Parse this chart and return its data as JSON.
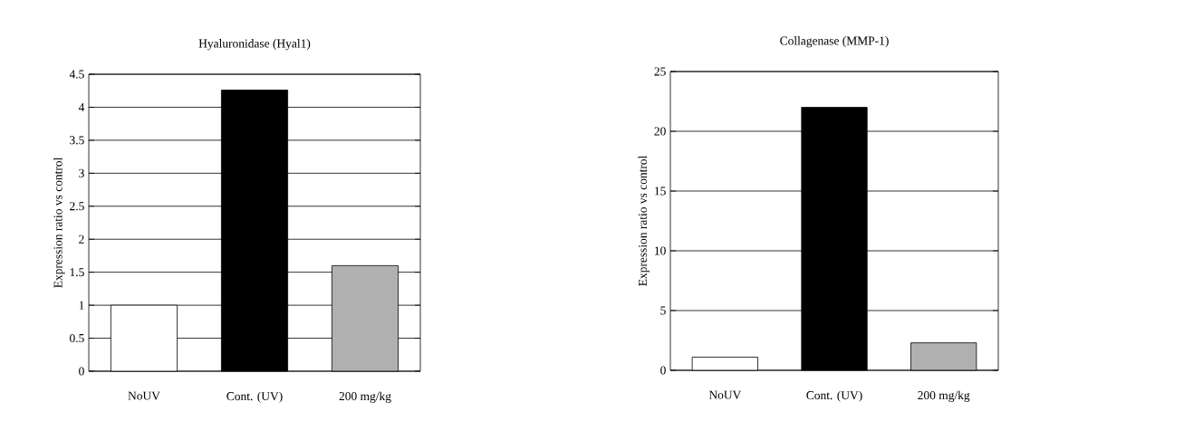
{
  "chart_data": [
    {
      "type": "bar",
      "title": "Hyaluronidase (Hyal1)",
      "ylabel": "Expression ratio vs control",
      "categories": [
        "NoUV",
        "Cont. (UV)",
        "200 mg/kg"
      ],
      "values": [
        1,
        4.26,
        1.6
      ],
      "colors": [
        "#ffffff",
        "#000000",
        "#b0b0b0"
      ],
      "ylim": [
        0,
        4.5
      ],
      "yticks": [
        0,
        0.5,
        1,
        1.5,
        2,
        2.5,
        3,
        3.5,
        4,
        4.5
      ],
      "grid": "y"
    },
    {
      "type": "bar",
      "title": "Collagenase (MMP-1)",
      "ylabel": "Expression ratio vs control",
      "categories": [
        "NoUV",
        "Cont. (UV)",
        "200 mg/kg"
      ],
      "values": [
        1.1,
        22,
        2.3
      ],
      "colors": [
        "#ffffff",
        "#000000",
        "#b0b0b0"
      ],
      "ylim": [
        0,
        25
      ],
      "yticks": [
        0,
        5,
        10,
        15,
        20,
        25
      ],
      "grid": "y"
    }
  ]
}
